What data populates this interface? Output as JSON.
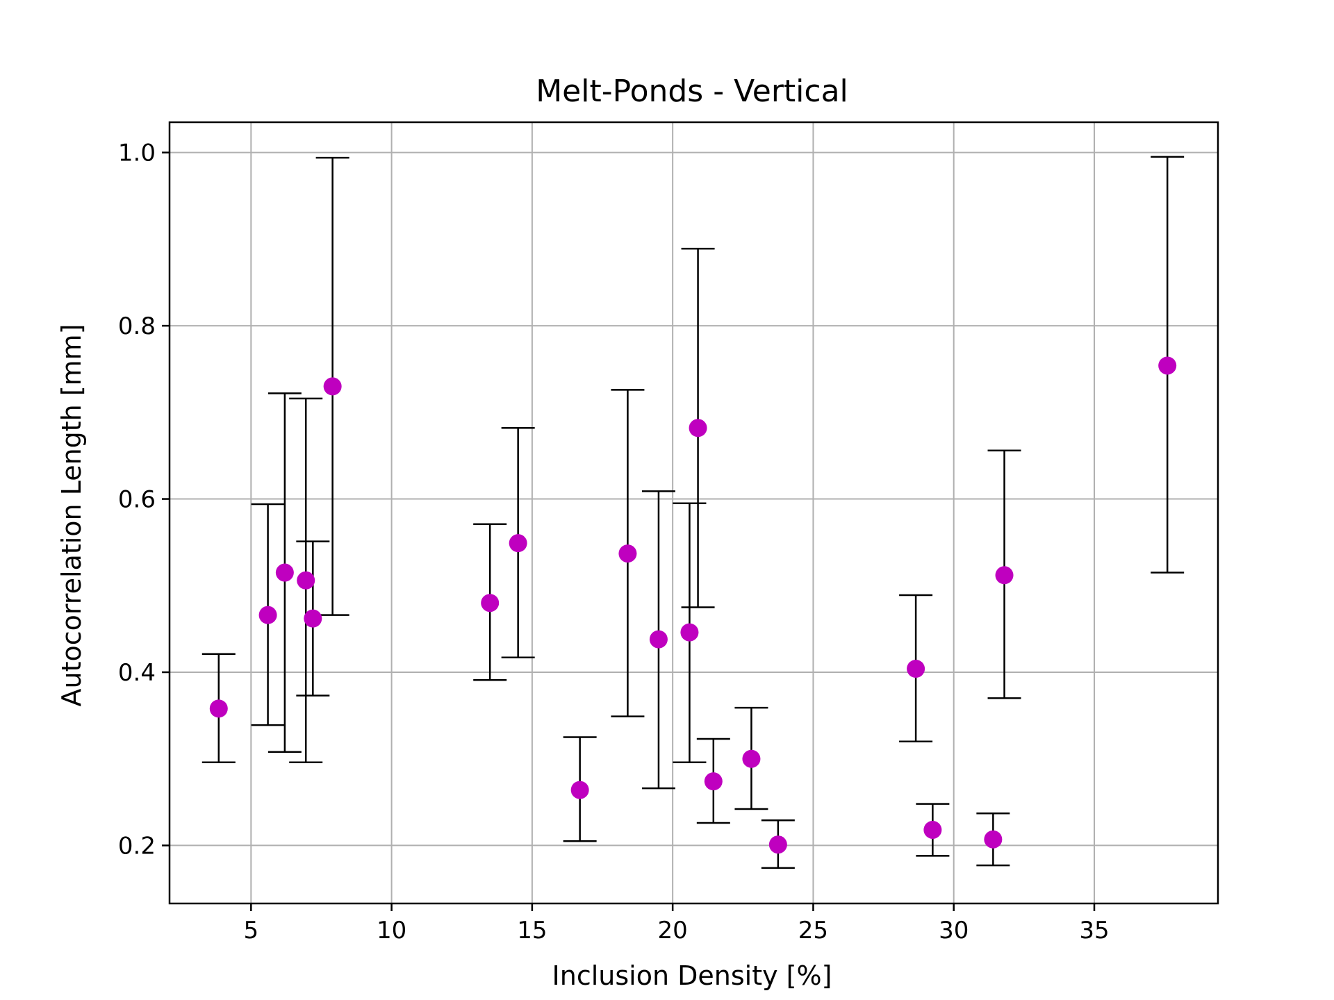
{
  "chart_data": {
    "type": "scatter",
    "title": "Melt-Ponds - Vertical",
    "xlabel": "Inclusion Density [%]",
    "ylabel": "Autocorrelation Length [mm]",
    "xlim": [
      2.1,
      39.4
    ],
    "ylim": [
      0.133,
      1.035
    ],
    "xticks": [
      5,
      10,
      15,
      20,
      25,
      30,
      35
    ],
    "yticks": [
      0.2,
      0.4,
      0.6,
      0.8,
      1.0
    ],
    "xtick_labels": [
      "5",
      "10",
      "15",
      "20",
      "25",
      "30",
      "35"
    ],
    "ytick_labels": [
      "0.2",
      "0.4",
      "0.6",
      "0.8",
      "1.0"
    ],
    "grid": true,
    "marker_color": "#bf00bf",
    "errorbar_color": "#000000",
    "points": [
      {
        "x": 3.85,
        "y": 0.358,
        "low": 0.296,
        "high": 0.421
      },
      {
        "x": 5.6,
        "y": 0.466,
        "low": 0.339,
        "high": 0.594
      },
      {
        "x": 6.2,
        "y": 0.515,
        "low": 0.308,
        "high": 0.722
      },
      {
        "x": 6.95,
        "y": 0.506,
        "low": 0.296,
        "high": 0.716
      },
      {
        "x": 7.2,
        "y": 0.462,
        "low": 0.373,
        "high": 0.551
      },
      {
        "x": 7.9,
        "y": 0.73,
        "low": 0.466,
        "high": 0.994
      },
      {
        "x": 13.5,
        "y": 0.48,
        "low": 0.391,
        "high": 0.571
      },
      {
        "x": 14.5,
        "y": 0.549,
        "low": 0.417,
        "high": 0.682
      },
      {
        "x": 16.7,
        "y": 0.264,
        "low": 0.205,
        "high": 0.325
      },
      {
        "x": 18.4,
        "y": 0.537,
        "low": 0.349,
        "high": 0.726
      },
      {
        "x": 19.5,
        "y": 0.438,
        "low": 0.266,
        "high": 0.609
      },
      {
        "x": 20.6,
        "y": 0.446,
        "low": 0.296,
        "high": 0.595
      },
      {
        "x": 20.9,
        "y": 0.682,
        "low": 0.475,
        "high": 0.889
      },
      {
        "x": 21.45,
        "y": 0.274,
        "low": 0.226,
        "high": 0.323
      },
      {
        "x": 22.8,
        "y": 0.3,
        "low": 0.242,
        "high": 0.359
      },
      {
        "x": 23.75,
        "y": 0.201,
        "low": 0.174,
        "high": 0.229
      },
      {
        "x": 28.65,
        "y": 0.404,
        "low": 0.32,
        "high": 0.489
      },
      {
        "x": 29.25,
        "y": 0.218,
        "low": 0.188,
        "high": 0.248
      },
      {
        "x": 31.4,
        "y": 0.207,
        "low": 0.177,
        "high": 0.237
      },
      {
        "x": 31.8,
        "y": 0.512,
        "low": 0.37,
        "high": 0.656
      },
      {
        "x": 37.6,
        "y": 0.754,
        "low": 0.515,
        "high": 0.995
      }
    ]
  }
}
